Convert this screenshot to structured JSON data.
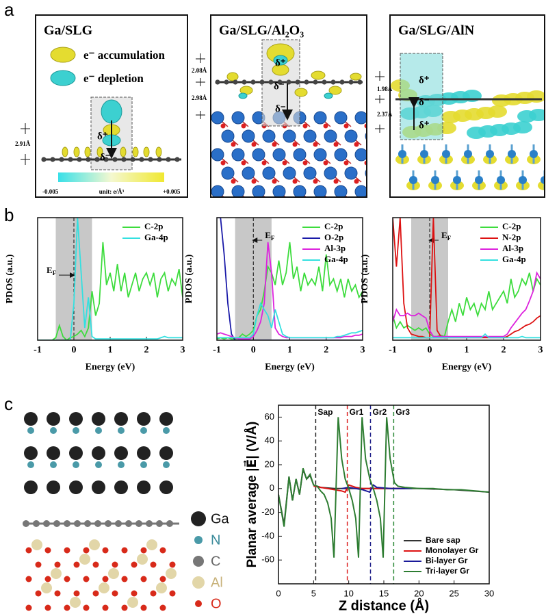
{
  "panel_a": {
    "label": "a",
    "boxes": [
      {
        "title": "Ga/SLG",
        "legend": [
          "e⁻ accumulation",
          "e⁻ depletion"
        ],
        "charges": [
          "δ⁺",
          "δ⁻"
        ],
        "distances": [
          "2.91Å"
        ],
        "colorbar": {
          "min": "-0.005",
          "unit": "unit: e/Å³",
          "max": "+0.005"
        }
      },
      {
        "title": "Ga/SLG/Al₂O₃",
        "charges": [
          "δ⁺",
          "δ⁻",
          "δ⁻"
        ],
        "distances": [
          "2.08Å",
          "2.98Å"
        ]
      },
      {
        "title": "Ga/SLG/AlN",
        "charges": [
          "δ⁺",
          "δ⁻",
          "δ⁺"
        ],
        "distances": [
          "1.98Å",
          "2.37Å"
        ]
      }
    ]
  },
  "panel_b": {
    "label": "b"
  },
  "panel_c": {
    "label": "c",
    "legend": [
      "Ga",
      "N",
      "C",
      "Al",
      "O"
    ]
  },
  "chart_data": [
    {
      "type": "line",
      "xlabel": "Energy (eV)",
      "ylabel": "PDOS (a.u.)",
      "xlim": [
        -1,
        3
      ],
      "xticks": [
        -1,
        0,
        1,
        2,
        3
      ],
      "ylim": [
        0,
        100
      ],
      "shaded": [
        -0.5,
        0.5
      ],
      "fermi": {
        "value": 0,
        "label": "E",
        "sub": "F"
      },
      "legend": "upper right",
      "x": [
        -1,
        -0.9,
        -0.8,
        -0.7,
        -0.6,
        -0.5,
        -0.4,
        -0.3,
        -0.2,
        -0.1,
        0,
        0.1,
        0.2,
        0.3,
        0.4,
        0.5,
        0.6,
        0.7,
        0.8,
        0.9,
        1,
        1.1,
        1.2,
        1.3,
        1.4,
        1.5,
        1.6,
        1.7,
        1.8,
        1.9,
        2,
        2.1,
        2.2,
        2.3,
        2.4,
        2.5,
        2.6,
        2.7,
        2.8,
        2.9,
        3
      ],
      "series": [
        {
          "name": "C-2p",
          "color": "#3ddc3d",
          "values": [
            0,
            0,
            0,
            0,
            0,
            2,
            12,
            3,
            0,
            2,
            3,
            5,
            8,
            3,
            10,
            40,
            20,
            30,
            80,
            45,
            55,
            40,
            62,
            40,
            55,
            35,
            45,
            55,
            40,
            50,
            55,
            45,
            55,
            35,
            50,
            55,
            40,
            50,
            45,
            58,
            35
          ]
        },
        {
          "name": "Ga-4p",
          "color": "#33e0e0",
          "values": [
            0,
            0,
            0,
            0,
            0,
            0,
            0,
            0,
            0,
            0,
            30,
            100,
            55,
            10,
            35,
            3,
            1,
            1,
            1,
            1,
            1,
            1,
            1,
            1,
            1,
            1,
            1,
            1,
            1,
            1,
            1,
            1,
            1,
            1,
            2,
            3,
            2,
            2,
            2,
            2,
            2
          ]
        }
      ]
    },
    {
      "type": "line",
      "xlabel": "Energy (eV)",
      "ylabel": "PDOS (a.u.)",
      "xlim": [
        -1,
        3
      ],
      "xticks": [
        -1,
        0,
        1,
        2,
        3
      ],
      "ylim": [
        0,
        100
      ],
      "shaded": [
        -0.5,
        0.5
      ],
      "fermi": {
        "value": 0,
        "label": "E",
        "sub": "F"
      },
      "legend": "upper right",
      "x": [
        -1,
        -0.9,
        -0.8,
        -0.7,
        -0.6,
        -0.5,
        -0.4,
        -0.3,
        -0.2,
        -0.1,
        0,
        0.1,
        0.2,
        0.3,
        0.4,
        0.5,
        0.6,
        0.7,
        0.8,
        0.9,
        1,
        1.1,
        1.2,
        1.3,
        1.4,
        1.5,
        1.6,
        1.7,
        1.8,
        1.9,
        2,
        2.1,
        2.2,
        2.3,
        2.4,
        2.5,
        2.6,
        2.7,
        2.8,
        2.9,
        3
      ],
      "series": [
        {
          "name": "C-2p",
          "color": "#3ddc3d",
          "values": [
            1,
            2,
            1,
            2,
            1,
            1,
            2,
            5,
            3,
            5,
            8,
            20,
            25,
            40,
            60,
            55,
            45,
            65,
            45,
            55,
            80,
            50,
            60,
            40,
            55,
            45,
            50,
            45,
            60,
            40,
            70,
            45,
            50,
            40,
            50,
            35,
            50,
            40,
            45,
            35,
            40
          ]
        },
        {
          "name": "O-2p",
          "color": "#1a1aa8",
          "values": [
            100,
            100,
            70,
            30,
            5,
            0,
            0,
            0,
            0,
            0,
            0,
            0,
            0,
            0,
            0,
            0,
            0,
            0,
            0,
            0,
            0,
            0,
            0,
            0,
            0,
            0,
            0,
            0,
            0,
            0,
            0,
            0,
            0,
            0,
            0,
            0,
            0,
            0,
            0,
            0,
            0
          ]
        },
        {
          "name": "Al-3p",
          "color": "#dd22dd",
          "values": [
            5,
            6,
            5,
            4,
            3,
            2,
            1,
            1,
            1,
            1,
            3,
            8,
            15,
            30,
            80,
            55,
            10,
            5,
            3,
            2,
            2,
            2,
            2,
            2,
            2,
            2,
            2,
            2,
            2,
            2,
            2,
            2,
            2,
            2,
            2,
            3,
            3,
            3,
            4,
            4,
            5
          ]
        },
        {
          "name": "Ga-4p",
          "color": "#33e0e0",
          "values": [
            2,
            2,
            2,
            2,
            2,
            2,
            2,
            2,
            2,
            2,
            5,
            20,
            30,
            25,
            20,
            10,
            25,
            15,
            5,
            3,
            2,
            2,
            2,
            2,
            2,
            2,
            2,
            2,
            2,
            2,
            2,
            2,
            2,
            3,
            3,
            4,
            5,
            6,
            6,
            7,
            8
          ]
        }
      ]
    },
    {
      "type": "line",
      "xlabel": "Energy (eV)",
      "ylabel": "PDOS (a.u.)",
      "xlim": [
        -1,
        3
      ],
      "xticks": [
        -1,
        0,
        1,
        2,
        3
      ],
      "ylim": [
        0,
        100
      ],
      "shaded": [
        -0.5,
        0.5
      ],
      "fermi": {
        "value": 0,
        "label": "E",
        "sub": "F"
      },
      "legend": "upper right",
      "x": [
        -1,
        -0.9,
        -0.8,
        -0.7,
        -0.6,
        -0.5,
        -0.4,
        -0.3,
        -0.2,
        -0.1,
        0,
        0.1,
        0.2,
        0.3,
        0.4,
        0.5,
        0.6,
        0.7,
        0.8,
        0.9,
        1,
        1.1,
        1.2,
        1.3,
        1.4,
        1.5,
        1.6,
        1.7,
        1.8,
        1.9,
        2,
        2.1,
        2.2,
        2.3,
        2.4,
        2.5,
        2.6,
        2.7,
        2.8,
        2.9,
        3
      ],
      "series": [
        {
          "name": "C-2p",
          "color": "#3ddc3d",
          "values": [
            20,
            10,
            15,
            10,
            12,
            10,
            8,
            10,
            8,
            10,
            5,
            3,
            3,
            4,
            3,
            15,
            25,
            15,
            30,
            20,
            35,
            25,
            30,
            20,
            30,
            25,
            40,
            25,
            30,
            35,
            40,
            30,
            50,
            35,
            40,
            50,
            45,
            55,
            40,
            50,
            45
          ]
        },
        {
          "name": "N-2p",
          "color": "#dd1111",
          "values": [
            100,
            60,
            100,
            30,
            10,
            5,
            4,
            3,
            3,
            2,
            2,
            100,
            8,
            3,
            2,
            2,
            2,
            2,
            2,
            2,
            2,
            2,
            2,
            2,
            2,
            2,
            2,
            2,
            2,
            2,
            2,
            3,
            5,
            7,
            8,
            10,
            12,
            13,
            15,
            18,
            20
          ]
        },
        {
          "name": "Al-3p",
          "color": "#dd22dd",
          "values": [
            15,
            25,
            20,
            20,
            22,
            20,
            20,
            22,
            20,
            18,
            8,
            3,
            3,
            3,
            3,
            3,
            3,
            3,
            3,
            3,
            3,
            3,
            3,
            3,
            3,
            3,
            3,
            3,
            3,
            3,
            3,
            5,
            10,
            14,
            18,
            22,
            25,
            32,
            40,
            55,
            50
          ]
        },
        {
          "name": "Ga-4p",
          "color": "#33e0e0",
          "values": [
            2,
            2,
            2,
            2,
            2,
            2,
            2,
            2,
            2,
            2,
            2,
            2,
            2,
            2,
            2,
            2,
            2,
            2,
            2,
            2,
            2,
            2,
            2,
            2,
            2,
            5,
            2,
            2,
            2,
            2,
            2,
            2,
            2,
            2,
            2,
            3,
            2,
            2,
            2,
            2,
            2
          ]
        }
      ]
    },
    {
      "type": "line",
      "xlabel": "Z distance (Å)",
      "ylabel": "Planar average |E⃗| (V/Å)",
      "xlim": [
        0,
        30
      ],
      "xticks": [
        0,
        5,
        10,
        15,
        20,
        25,
        30
      ],
      "ylim": [
        -80,
        70
      ],
      "yticks": [
        -60,
        -40,
        -20,
        0,
        20,
        40,
        60
      ],
      "legend": "lower right",
      "dividers": [
        {
          "value": 5.3,
          "label": "Sap",
          "color": "#222222"
        },
        {
          "value": 9.8,
          "label": "Gr1",
          "color": "#dd2222"
        },
        {
          "value": 13.1,
          "label": "Gr2",
          "color": "#22228a"
        },
        {
          "value": 16.4,
          "label": "Gr3",
          "color": "#2e8b3a"
        }
      ],
      "series": [
        {
          "name": "Bare sap",
          "color": "#333333",
          "x": [
            0,
            0.8,
            1.5,
            2,
            2.5,
            3,
            3.5,
            4,
            4.5,
            5,
            6,
            8,
            10,
            12,
            15,
            20,
            25,
            30
          ],
          "values": [
            -5,
            -30,
            10,
            -10,
            8,
            -5,
            16,
            8,
            11,
            3,
            1,
            0,
            0,
            0,
            0,
            0,
            -1,
            -3
          ]
        },
        {
          "name": "Monolayer Gr",
          "color": "#dd1111",
          "x": [
            5,
            6,
            7,
            8,
            9,
            9.5,
            10,
            11,
            12,
            14,
            18
          ],
          "values": [
            2,
            1,
            0,
            -1,
            -2,
            -3,
            3,
            1,
            0,
            0,
            0
          ]
        },
        {
          "name": "Bi-layer Gr",
          "color": "#1a1a9a",
          "x": [
            9,
            10,
            11,
            12,
            12.5,
            13,
            13.5,
            14,
            16,
            19
          ],
          "values": [
            0,
            1,
            0,
            -1,
            -2,
            -3,
            3,
            1,
            0,
            0
          ]
        },
        {
          "name": "Tri-layer Gr",
          "color": "#2e7d32",
          "x": [
            0,
            0.8,
            1.5,
            2,
            2.5,
            3,
            3.5,
            4,
            4.5,
            5,
            5.5,
            6,
            6.5,
            7,
            7.5,
            7.9,
            8.5,
            9,
            9.5,
            10,
            10.5,
            11,
            11.4,
            11.9,
            12.4,
            13,
            13.5,
            14,
            14.5,
            14.9,
            15.4,
            15.9,
            16.5,
            17,
            18,
            20,
            22,
            24,
            26,
            28,
            30
          ],
          "values": [
            -5,
            -32,
            10,
            -10,
            8,
            -5,
            17,
            8,
            12,
            3,
            2,
            -2,
            -5,
            -12,
            -25,
            -58,
            60,
            25,
            8,
            0,
            -10,
            -25,
            -58,
            60,
            25,
            8,
            0,
            -10,
            -25,
            -58,
            60,
            25,
            5,
            2,
            1,
            0,
            0,
            -1,
            -1,
            -2,
            -3
          ]
        }
      ]
    }
  ]
}
